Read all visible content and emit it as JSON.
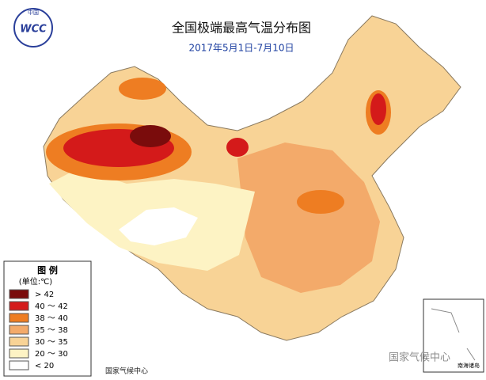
{
  "header": {
    "title": "全国极端最高气温分布图",
    "subtitle": "2017年5月1日-7月10日"
  },
  "logo": {
    "top": "中国",
    "text": "WCC"
  },
  "legend": {
    "title": "图 例",
    "unit": "(单位:℃)",
    "items": [
      {
        "label": "> 42",
        "color": "#7a0c0c"
      },
      {
        "label": "40 ～ 42",
        "color": "#d41a1a"
      },
      {
        "label": "38 ～ 40",
        "color": "#ee7d22"
      },
      {
        "label": "35 ～ 38",
        "color": "#f3aa6a"
      },
      {
        "label": "30 ～ 35",
        "color": "#f8d396"
      },
      {
        "label": "20 ～ 30",
        "color": "#fdf3c4"
      },
      {
        "label": "< 20",
        "color": "#ffffff"
      }
    ]
  },
  "footer": "国家气候中心",
  "inset": {
    "label": "南海诸岛"
  },
  "watermark": "国家气候中心"
}
